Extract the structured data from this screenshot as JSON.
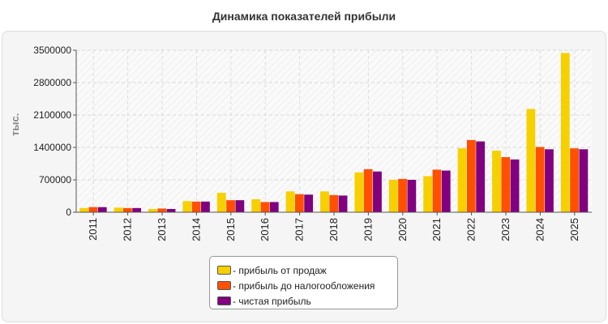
{
  "chart_data": {
    "type": "bar",
    "title": "Динамика показателей прибыли",
    "ylabel": "тыс.",
    "xlabel": "",
    "ylim": [
      0,
      3500000
    ],
    "yticks": [
      "3500000",
      "2800000",
      "2100000",
      "1400000",
      "700000",
      "0"
    ],
    "ytick_values": [
      3500000,
      2800000,
      2100000,
      1400000,
      700000,
      0
    ],
    "categories": [
      "2011",
      "2012",
      "2013",
      "2014",
      "2015",
      "2016",
      "2017",
      "2018",
      "2019",
      "2020",
      "2021",
      "2022",
      "2023",
      "2024",
      "2025"
    ],
    "series": [
      {
        "name": "- прибыль от продаж",
        "color": "#f7d000",
        "values": [
          90000,
          100000,
          70000,
          240000,
          420000,
          280000,
          450000,
          450000,
          860000,
          700000,
          780000,
          1380000,
          1330000,
          2230000,
          3440000
        ]
      },
      {
        "name": "- прибыль до налогообложения",
        "color": "#ff5000",
        "values": [
          110000,
          90000,
          80000,
          230000,
          260000,
          220000,
          390000,
          370000,
          930000,
          720000,
          920000,
          1560000,
          1190000,
          1410000,
          1380000
        ]
      },
      {
        "name": "- чистая прибыль",
        "color": "#800080",
        "values": [
          110000,
          90000,
          70000,
          230000,
          260000,
          220000,
          380000,
          360000,
          880000,
          700000,
          900000,
          1530000,
          1140000,
          1360000,
          1360000
        ]
      }
    ],
    "grid": true,
    "legend_position": "bottom-center"
  }
}
